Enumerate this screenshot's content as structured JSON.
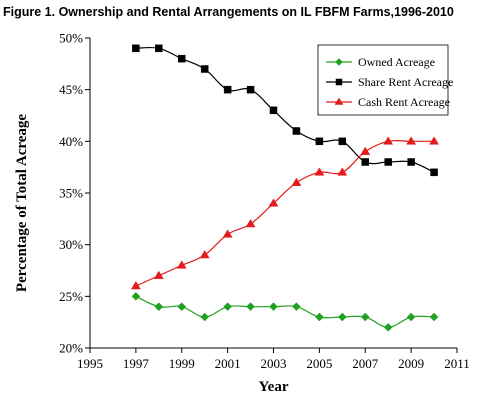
{
  "figure": {
    "title": "Figure 1. Ownership and Rental Arrangements on IL FBFM Farms,1996-2010"
  },
  "chart_data": {
    "type": "line",
    "title": "Figure 1. Ownership and Rental Arrangements on IL FBFM Farms,1996-2010",
    "xlabel": "Year",
    "ylabel": "Percentage of Total Acreage",
    "xlim": [
      1995,
      2011
    ],
    "ylim": [
      20,
      50
    ],
    "x_ticks": [
      "1995",
      "1997",
      "1999",
      "2001",
      "2003",
      "2005",
      "2007",
      "2009",
      "2011"
    ],
    "y_ticks": [
      "20%",
      "25%",
      "30%",
      "35%",
      "40%",
      "45%",
      "50%"
    ],
    "x_tick_values": [
      1995,
      1997,
      1999,
      2001,
      2003,
      2005,
      2007,
      2009,
      2011
    ],
    "y_tick_values": [
      20,
      25,
      30,
      35,
      40,
      45,
      50
    ],
    "grid": false,
    "legend_position": "top-right",
    "x": [
      1997,
      1998,
      1999,
      2000,
      2001,
      2002,
      2003,
      2004,
      2005,
      2006,
      2007,
      2008,
      2009,
      2010
    ],
    "series": [
      {
        "name": "Owned Acreage",
        "color": "#22a022",
        "marker": "diamond",
        "values": [
          25,
          24,
          24,
          23,
          24,
          24,
          24,
          24,
          23,
          23,
          23,
          22,
          23,
          23
        ]
      },
      {
        "name": "Share Rent Acreage",
        "color": "#000000",
        "marker": "square",
        "values": [
          49,
          49,
          48,
          47,
          45,
          45,
          43,
          41,
          40,
          40,
          38,
          38,
          38,
          37
        ]
      },
      {
        "name": "Cash Rent Acreage",
        "color": "#e41a1c",
        "marker": "triangle",
        "values": [
          26,
          27,
          28,
          29,
          31,
          32,
          34,
          36,
          37,
          37,
          39,
          40,
          40,
          40
        ]
      }
    ]
  }
}
